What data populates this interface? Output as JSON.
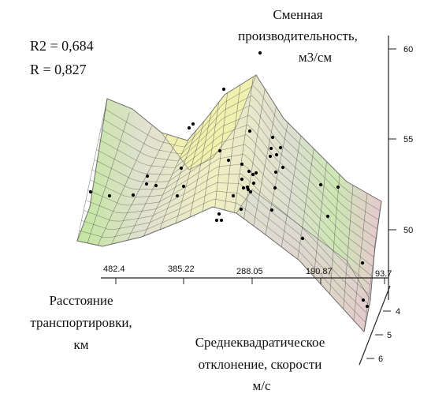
{
  "chart_data": {
    "type": "scatter",
    "surface": "3d-mesh",
    "stats": [
      "R2 = 0,684",
      "R = 0,827"
    ],
    "z_label": [
      "Сменная",
      "производительность,",
      "м3/см"
    ],
    "x_label": [
      "Расстояние",
      "транспортировки,",
      "км"
    ],
    "y_label": [
      "Среднеквадратическое",
      "отклонение, скорости",
      "м/с"
    ],
    "x_ticks": [
      "482.4",
      "385.22",
      "288.05",
      "190.87",
      "93.7"
    ],
    "y_ticks": [
      "4",
      "5",
      "6"
    ],
    "z_ticks": [
      "60",
      "55",
      "50"
    ],
    "zlim": [
      50,
      60
    ],
    "xlim": [
      482.4,
      93.7
    ],
    "ylim": [
      4,
      6
    ]
  }
}
